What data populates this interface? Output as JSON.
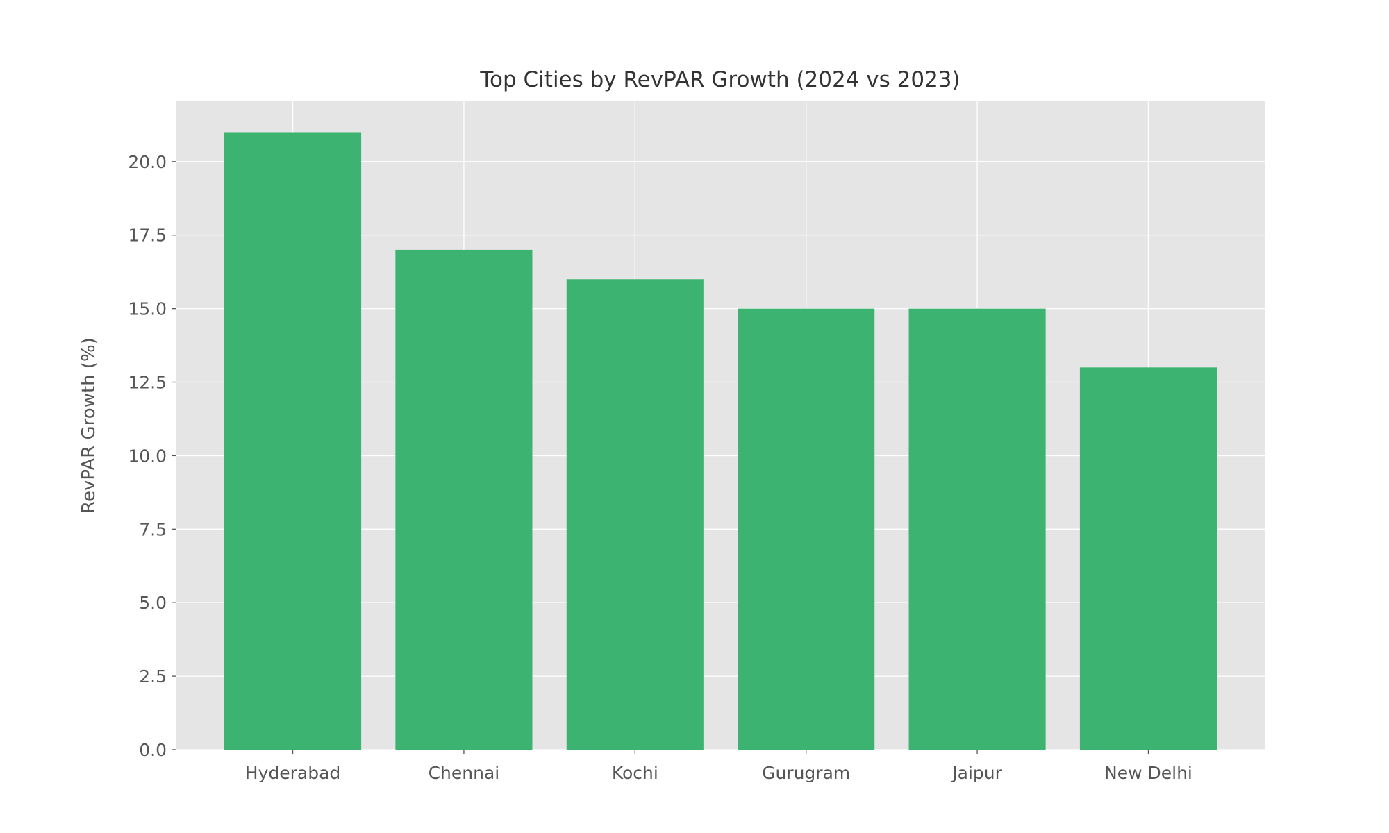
{
  "chart_data": {
    "type": "bar",
    "title": "Top Cities by RevPAR Growth (2024 vs 2023)",
    "xlabel": "",
    "ylabel": "RevPAR Growth (%)",
    "categories": [
      "Hyderabad",
      "Chennai",
      "Kochi",
      "Gurugram",
      "Jaipur",
      "New Delhi"
    ],
    "values": [
      21,
      17,
      16,
      15,
      15,
      13
    ],
    "ylim": [
      0,
      22.05
    ],
    "yticks": [
      0,
      2.5,
      5,
      7.5,
      10,
      12.5,
      15,
      17.5,
      20
    ],
    "ytick_labels": [
      "0.0",
      "2.5",
      "5.0",
      "7.5",
      "10.0",
      "12.5",
      "15.0",
      "17.5",
      "20.0"
    ],
    "grid": true,
    "bar_color": "#3cb371",
    "background_color": "#e5e5e5",
    "grid_color": "#ffffff"
  }
}
